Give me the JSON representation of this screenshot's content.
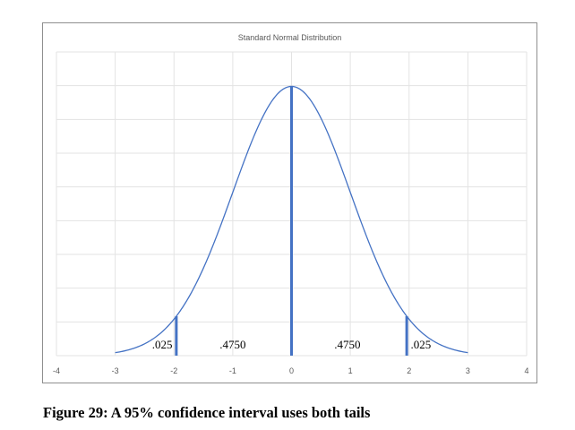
{
  "chart_data": {
    "type": "line",
    "title": "Standard Normal Distribution",
    "xlabel": "",
    "ylabel": "",
    "xlim": [
      -4,
      4
    ],
    "ylim": [
      0,
      0.45
    ],
    "x_ticks": [
      -4,
      -3,
      -2,
      -1,
      0,
      1,
      2,
      3,
      4
    ],
    "grid": true,
    "legend": "none",
    "curve": {
      "x_range": [
        -3,
        3
      ],
      "mean": 0,
      "sd": 1,
      "color": "#4472c4"
    },
    "markers": [
      {
        "x": -1.96,
        "y": 0.0584
      },
      {
        "x": 0,
        "y": 0.3989
      },
      {
        "x": 1.96,
        "y": 0.0584
      }
    ],
    "marker_color": "#4472c4",
    "annotations": [
      {
        "text": ".025",
        "x": -2.2
      },
      {
        "text": ".4750",
        "x": -1.0
      },
      {
        "text": ".4750",
        "x": 0.95
      },
      {
        "text": ".025",
        "x": 2.2
      }
    ]
  },
  "caption": "Figure 29: A 95% confidence interval uses both tails"
}
